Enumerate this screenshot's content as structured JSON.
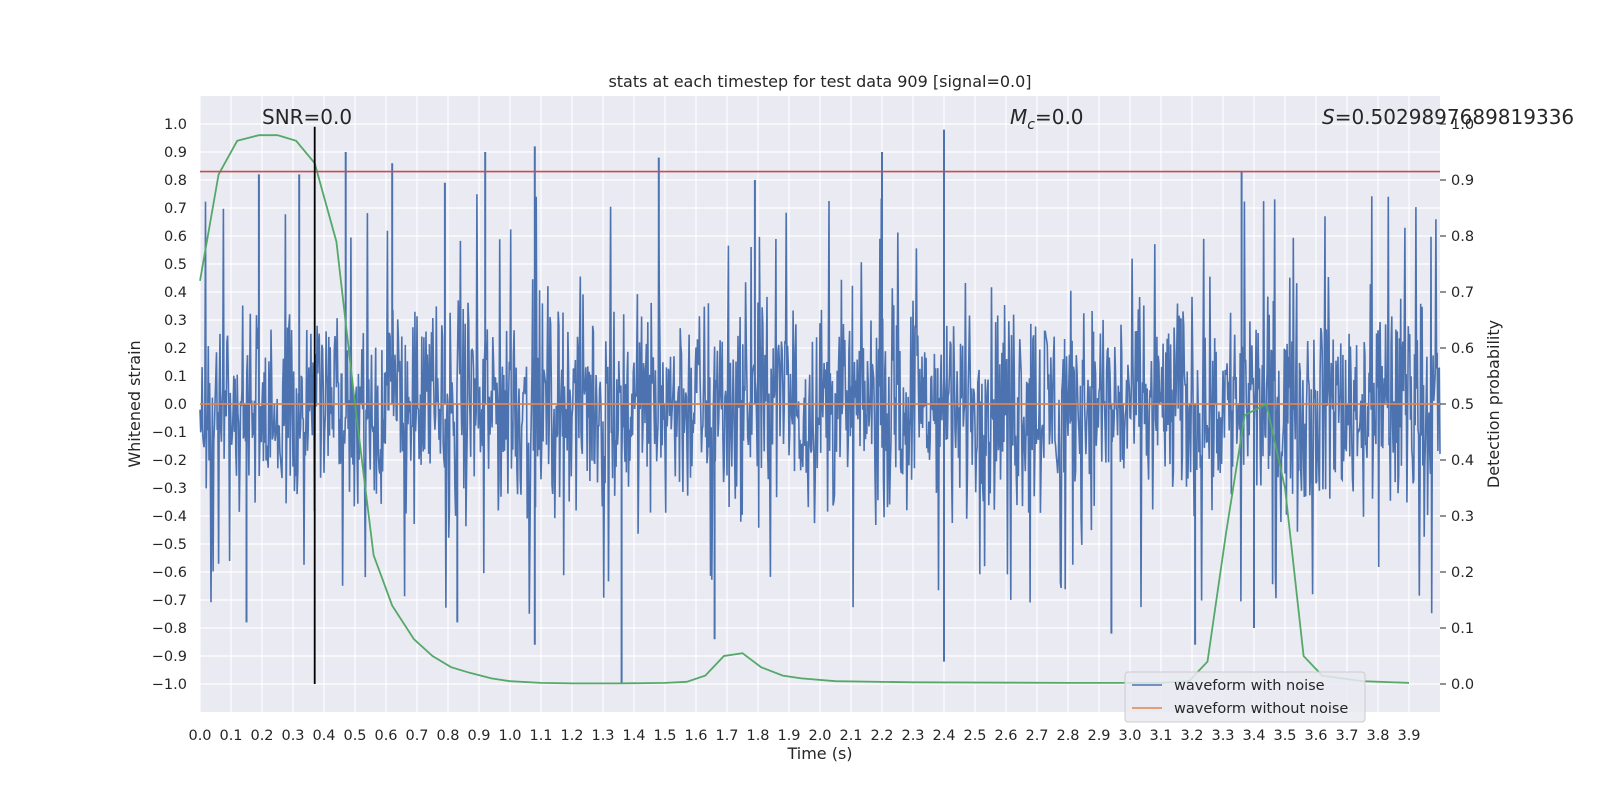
{
  "chart_data": {
    "type": "line",
    "title": "stats at each timestep for test data 909 [signal=0.0]",
    "xlabel": "Time (s)",
    "ylabel": "Whitened strain",
    "y2label": "Detection probability",
    "xlim": [
      0.0,
      4.0
    ],
    "ylim": [
      -1.1,
      1.1
    ],
    "y2lim": [
      -0.05,
      1.05
    ],
    "xticks": [
      "0.0",
      "0.1",
      "0.2",
      "0.3",
      "0.4",
      "0.5",
      "0.6",
      "0.7",
      "0.8",
      "0.9",
      "1.0",
      "1.1",
      "1.2",
      "1.3",
      "1.4",
      "1.5",
      "1.6",
      "1.7",
      "1.8",
      "1.9",
      "2.0",
      "2.1",
      "2.2",
      "2.3",
      "2.4",
      "2.5",
      "2.6",
      "2.7",
      "2.8",
      "2.9",
      "3.0",
      "3.1",
      "3.2",
      "3.3",
      "3.4",
      "3.5",
      "3.6",
      "3.7",
      "3.8",
      "3.9"
    ],
    "yticks": [
      "1.0",
      "0.9",
      "0.8",
      "0.7",
      "0.6",
      "0.5",
      "0.4",
      "0.3",
      "0.2",
      "0.1",
      "0.0",
      "−0.1",
      "−0.2",
      "−0.3",
      "−0.4",
      "−0.5",
      "−0.6",
      "−0.7",
      "−0.8",
      "−0.9",
      "−1.0"
    ],
    "y2ticks": [
      "1.0",
      "0.9",
      "0.8",
      "0.7",
      "0.6",
      "0.5",
      "0.4",
      "0.3",
      "0.2",
      "0.1",
      "0.0"
    ],
    "grid": true,
    "legend_position": "bottom-right",
    "annotations": {
      "snr": "SNR=0.0",
      "mc_symbol": "M",
      "mc_sub": "c",
      "mc_value": "=0.0",
      "s_symbol": "S",
      "s_value": "=0.5029897689819336"
    },
    "series": [
      {
        "name": "waveform with noise",
        "color": "#4c72b0",
        "axis": "left",
        "kind": "noise",
        "spikes": [
          {
            "x": 0.15,
            "y": -0.78
          },
          {
            "x": 0.19,
            "y": 0.82
          },
          {
            "x": 0.32,
            "y": 0.82
          },
          {
            "x": 0.47,
            "y": 0.9
          },
          {
            "x": 0.62,
            "y": 0.86
          },
          {
            "x": 0.79,
            "y": 0.79
          },
          {
            "x": 0.83,
            "y": -0.78
          },
          {
            "x": 0.92,
            "y": 0.9
          },
          {
            "x": 1.08,
            "y": 0.92
          },
          {
            "x": 1.08,
            "y": -0.86
          },
          {
            "x": 1.36,
            "y": -1.0
          },
          {
            "x": 1.48,
            "y": 0.88
          },
          {
            "x": 1.66,
            "y": -0.84
          },
          {
            "x": 1.79,
            "y": 0.8
          },
          {
            "x": 2.2,
            "y": 0.9
          },
          {
            "x": 2.4,
            "y": 0.98
          },
          {
            "x": 2.4,
            "y": -0.92
          },
          {
            "x": 2.94,
            "y": -0.82
          },
          {
            "x": 3.21,
            "y": -0.86
          },
          {
            "x": 3.36,
            "y": 0.83
          },
          {
            "x": 3.4,
            "y": -0.8
          }
        ]
      },
      {
        "name": "waveform without noise",
        "color": "#dd8452",
        "axis": "left",
        "x": [
          0.0,
          4.0
        ],
        "y": [
          0.0,
          0.0
        ]
      },
      {
        "name": "",
        "color": "#55a868",
        "axis": "right",
        "x": [
          0.0,
          0.06,
          0.12,
          0.19,
          0.25,
          0.31,
          0.37,
          0.44,
          0.5,
          0.56,
          0.62,
          0.69,
          0.75,
          0.81,
          0.87,
          0.94,
          1.0,
          1.1,
          1.2,
          1.35,
          1.5,
          1.57,
          1.63,
          1.69,
          1.75,
          1.81,
          1.88,
          1.94,
          2.05,
          2.3,
          2.8,
          3.1,
          3.19,
          3.25,
          3.31,
          3.37,
          3.44,
          3.5,
          3.56,
          3.62,
          3.75,
          3.9
        ],
        "y": [
          0.72,
          0.91,
          0.97,
          0.98,
          0.98,
          0.97,
          0.93,
          0.79,
          0.5,
          0.23,
          0.14,
          0.08,
          0.05,
          0.03,
          0.02,
          0.01,
          0.005,
          0.002,
          0.001,
          0.001,
          0.002,
          0.004,
          0.015,
          0.05,
          0.055,
          0.03,
          0.015,
          0.01,
          0.005,
          0.003,
          0.002,
          0.002,
          0.005,
          0.04,
          0.27,
          0.48,
          0.5,
          0.35,
          0.05,
          0.015,
          0.005,
          0.002
        ]
      }
    ],
    "hlines": [
      {
        "y": 0.915,
        "axis": "right",
        "color": "#c44e52"
      }
    ],
    "vlines": [
      {
        "x": 0.37,
        "ymin": -1.0,
        "ymax": 0.99,
        "color": "#000000"
      }
    ]
  }
}
